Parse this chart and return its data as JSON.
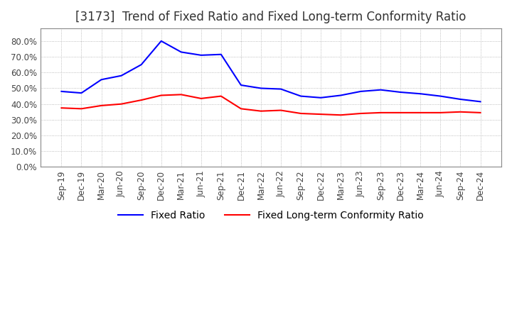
{
  "title": "[3173]  Trend of Fixed Ratio and Fixed Long-term Conformity Ratio",
  "x_labels": [
    "Sep-19",
    "Dec-19",
    "Mar-20",
    "Jun-20",
    "Sep-20",
    "Dec-20",
    "Mar-21",
    "Jun-21",
    "Sep-21",
    "Dec-21",
    "Mar-22",
    "Jun-22",
    "Sep-22",
    "Dec-22",
    "Mar-23",
    "Jun-23",
    "Sep-23",
    "Dec-23",
    "Mar-24",
    "Jun-24",
    "Sep-24",
    "Dec-24"
  ],
  "fixed_ratio": [
    0.48,
    0.47,
    0.555,
    0.58,
    0.65,
    0.8,
    0.73,
    0.71,
    0.715,
    0.52,
    0.5,
    0.495,
    0.45,
    0.44,
    0.455,
    0.48,
    0.49,
    0.475,
    0.465,
    0.45,
    0.43,
    0.415
  ],
  "fixed_lt_ratio": [
    0.375,
    0.37,
    0.39,
    0.4,
    0.425,
    0.455,
    0.46,
    0.435,
    0.45,
    0.37,
    0.355,
    0.36,
    0.34,
    0.335,
    0.33,
    0.34,
    0.345,
    0.345,
    0.345,
    0.345,
    0.35,
    0.345
  ],
  "fixed_ratio_color": "#0000ff",
  "fixed_lt_ratio_color": "#ff0000",
  "ylim": [
    0.0,
    0.88
  ],
  "yticks": [
    0.0,
    0.1,
    0.2,
    0.3,
    0.4,
    0.5,
    0.6,
    0.7,
    0.8
  ],
  "background_color": "#ffffff",
  "grid_color": "#aaaaaa",
  "title_fontsize": 12,
  "legend_fontsize": 10,
  "tick_fontsize": 8.5
}
